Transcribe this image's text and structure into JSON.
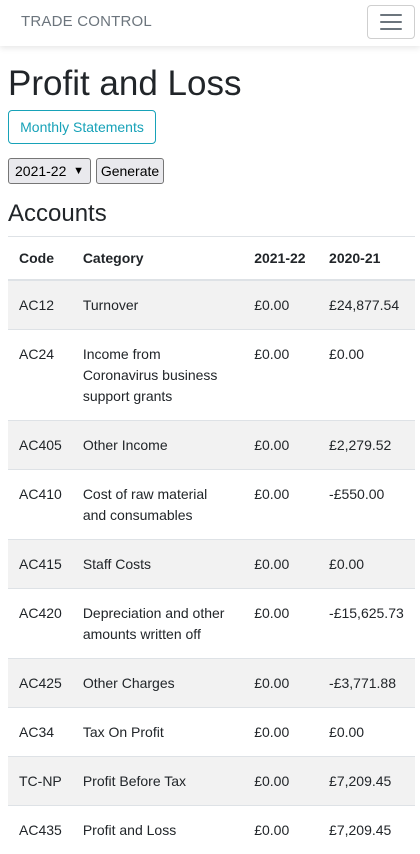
{
  "navbar": {
    "brand": "TRADE CONTROL",
    "toggler_icon": "hamburger-icon"
  },
  "page": {
    "title": "Profit and Loss",
    "monthly_button": "Monthly Statements",
    "year_select_value": "2021-22",
    "generate_button": "Generate",
    "section_title": "Accounts"
  },
  "table": {
    "headers": [
      "Code",
      "Category",
      "2021-22",
      "2020-21"
    ],
    "rows": [
      {
        "code": "AC12",
        "category": "Turnover",
        "y1": "£0.00",
        "y2": "£24,877.54"
      },
      {
        "code": "AC24",
        "category": "Income from Coronavirus business support grants",
        "y1": "£0.00",
        "y2": "£0.00"
      },
      {
        "code": "AC405",
        "category": "Other Income",
        "y1": "£0.00",
        "y2": "£2,279.52"
      },
      {
        "code": "AC410",
        "category": "Cost of raw material and consumables",
        "y1": "£0.00",
        "y2": "-£550.00"
      },
      {
        "code": "AC415",
        "category": "Staff Costs",
        "y1": "£0.00",
        "y2": "£0.00"
      },
      {
        "code": "AC420",
        "category": "Depreciation and other amounts written off",
        "y1": "£0.00",
        "y2": "-£15,625.73"
      },
      {
        "code": "AC425",
        "category": "Other Charges",
        "y1": "£0.00",
        "y2": "-£3,771.88"
      },
      {
        "code": "AC34",
        "category": "Tax On Profit",
        "y1": "£0.00",
        "y2": "£0.00"
      },
      {
        "code": "TC-NP",
        "category": "Profit Before Tax",
        "y1": "£0.00",
        "y2": "£7,209.45"
      },
      {
        "code": "AC435",
        "category": "Profit and Loss",
        "y1": "£0.00",
        "y2": "£7,209.45"
      }
    ]
  },
  "colors": {
    "accent": "#17a2b8",
    "stripe": "#f2f2f2",
    "text": "#212529",
    "muted": "#6c757d"
  }
}
